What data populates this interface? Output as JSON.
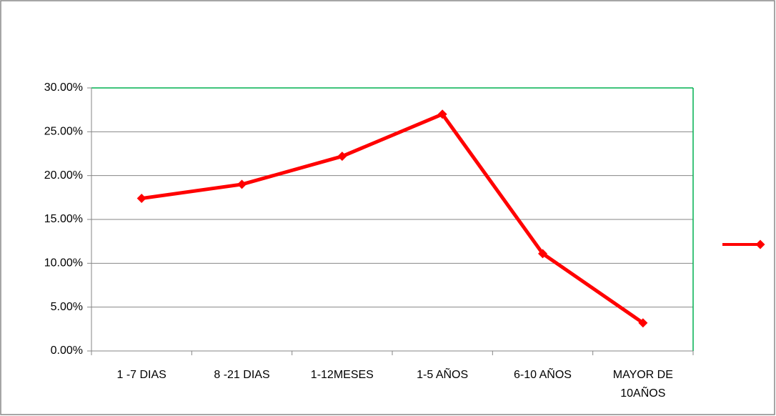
{
  "chart_data": {
    "type": "line",
    "categories": [
      "1 -7 DIAS",
      "8 -21 DIAS",
      "1-12MESES",
      "1-5 AÑOS",
      "6-10 AÑOS",
      "MAYOR DE 10AÑOS"
    ],
    "series": [
      {
        "color": "#ff0000",
        "values": [
          17.4,
          19.0,
          22.2,
          27.0,
          11.1,
          3.2
        ]
      }
    ],
    "ylim": [
      0,
      30
    ],
    "yticks": [
      {
        "value": 0,
        "label": "0.00%"
      },
      {
        "value": 5,
        "label": "5.00%"
      },
      {
        "value": 10,
        "label": "10.00%"
      },
      {
        "value": 15,
        "label": "15.00%"
      },
      {
        "value": 20,
        "label": "20.00%"
      },
      {
        "value": 25,
        "label": "25.00%"
      },
      {
        "value": 30,
        "label": "30.00%"
      }
    ],
    "grid": true,
    "legend": "right"
  }
}
